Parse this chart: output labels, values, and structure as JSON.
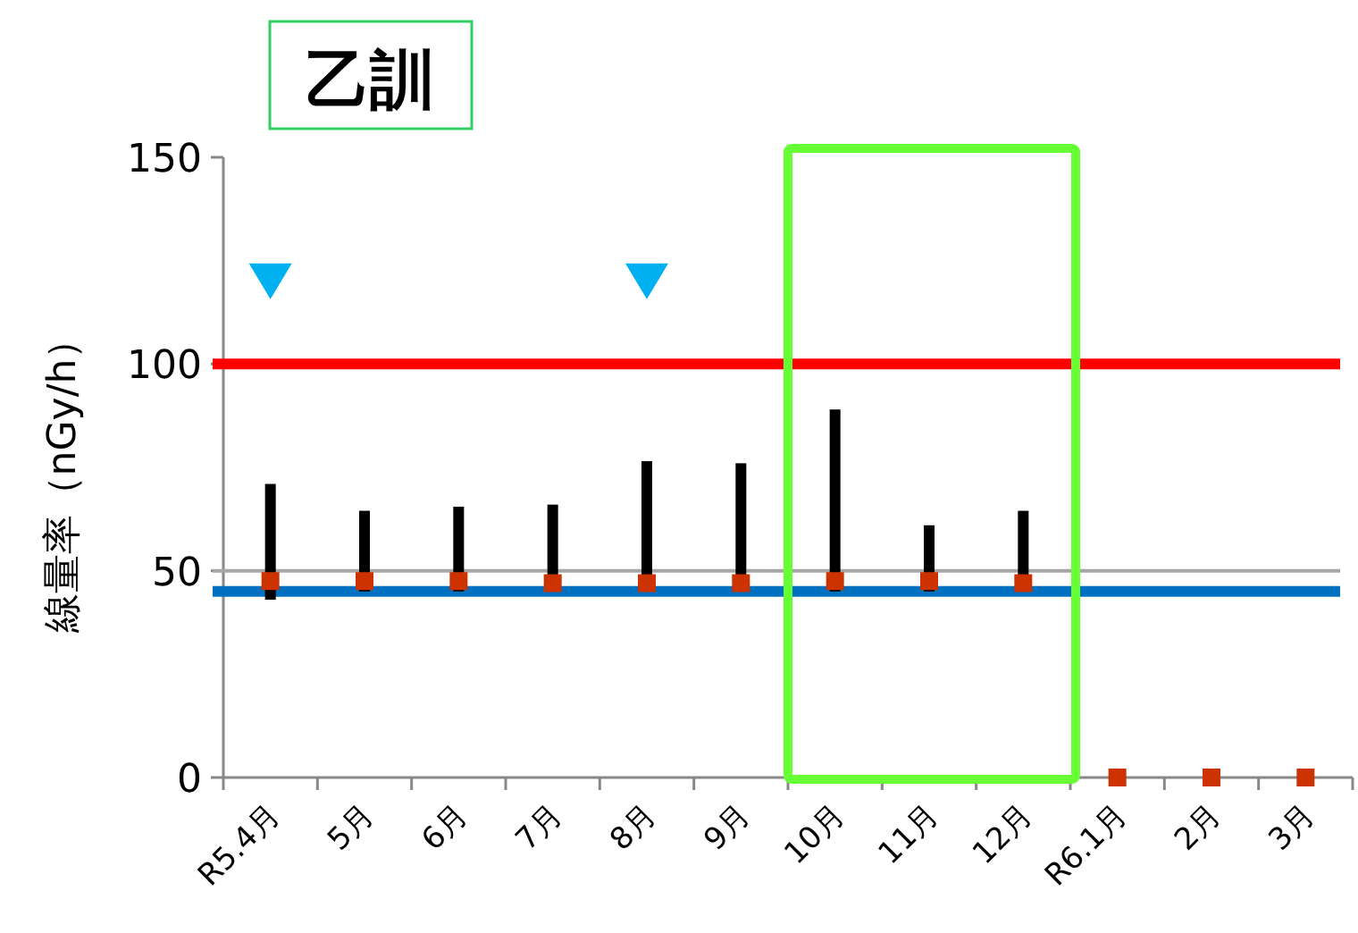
{
  "chart_data": {
    "type": "bar",
    "title": "乙訓",
    "ylabel": "線量率（nGy/h）",
    "categories": [
      "R5.4月",
      "5月",
      "6月",
      "7月",
      "8月",
      "9月",
      "10月",
      "11月",
      "12月",
      "R6.1月",
      "2月",
      "3月"
    ],
    "series": [
      {
        "color": "#000000",
        "base": [
          43,
          45,
          45,
          45,
          45,
          45,
          45,
          45,
          45,
          null,
          null,
          null
        ],
        "values": [
          28,
          19.5,
          20.5,
          21,
          31.5,
          31,
          44,
          16,
          19.5,
          null,
          null,
          null
        ]
      },
      {
        "type": "scatter",
        "marker": "square",
        "color": "#cc3300",
        "values": [
          47.5,
          47.5,
          47.5,
          47,
          47,
          47,
          47.5,
          47.5,
          47,
          0,
          0,
          0
        ]
      },
      {
        "type": "scatter",
        "marker": "triangle",
        "color": "#00b0f0",
        "values": [
          120,
          null,
          null,
          null,
          120,
          null,
          null,
          null,
          null,
          null,
          null,
          null
        ]
      }
    ],
    "ref_lines": [
      {
        "axis": "y",
        "value": 100,
        "color": "#ff0000"
      },
      {
        "axis": "y",
        "value": 45,
        "color": "#0070c0"
      },
      {
        "axis": "y",
        "value": 50,
        "color": "#a6a6a6"
      }
    ],
    "ylim": [
      0,
      150
    ],
    "yticks": [
      0,
      50,
      100,
      150
    ],
    "grid": false
  }
}
